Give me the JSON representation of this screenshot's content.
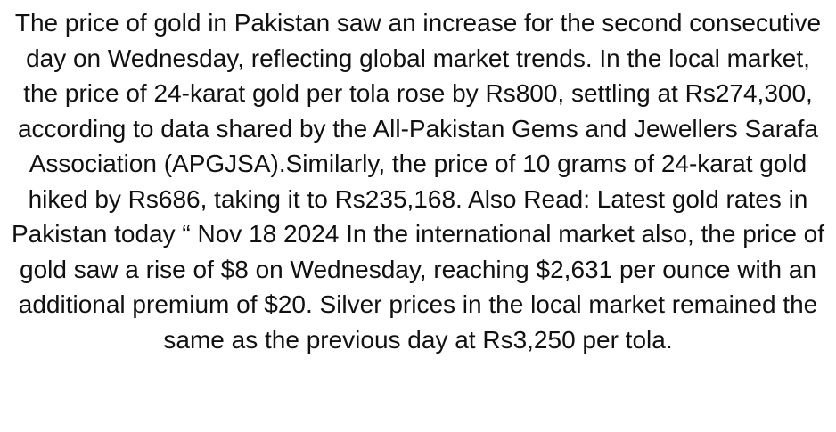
{
  "article": {
    "body": "The price of gold in Pakistan saw an increase for the second consecutive day on Wednesday, reflecting global market trends. In the local market, the price of 24-karat gold per tola rose by Rs800, settling at Rs274,300, according to data shared by the All-Pakistan Gems and Jewellers Sarafa Association (APGJSA).Similarly, the price of 10 grams of 24-karat gold hiked by Rs686, taking it to Rs235,168. Also Read: Latest gold rates in Pakistan today “ Nov 18 2024 In the international market also, the price of gold saw a rise of $8 on Wednesday, reaching $2,631 per ounce with an additional premium of $20. Silver prices in the local market remained the same as the previous day at Rs3,250 per tola."
  },
  "colors": {
    "text": "#111111",
    "background": "#ffffff"
  }
}
